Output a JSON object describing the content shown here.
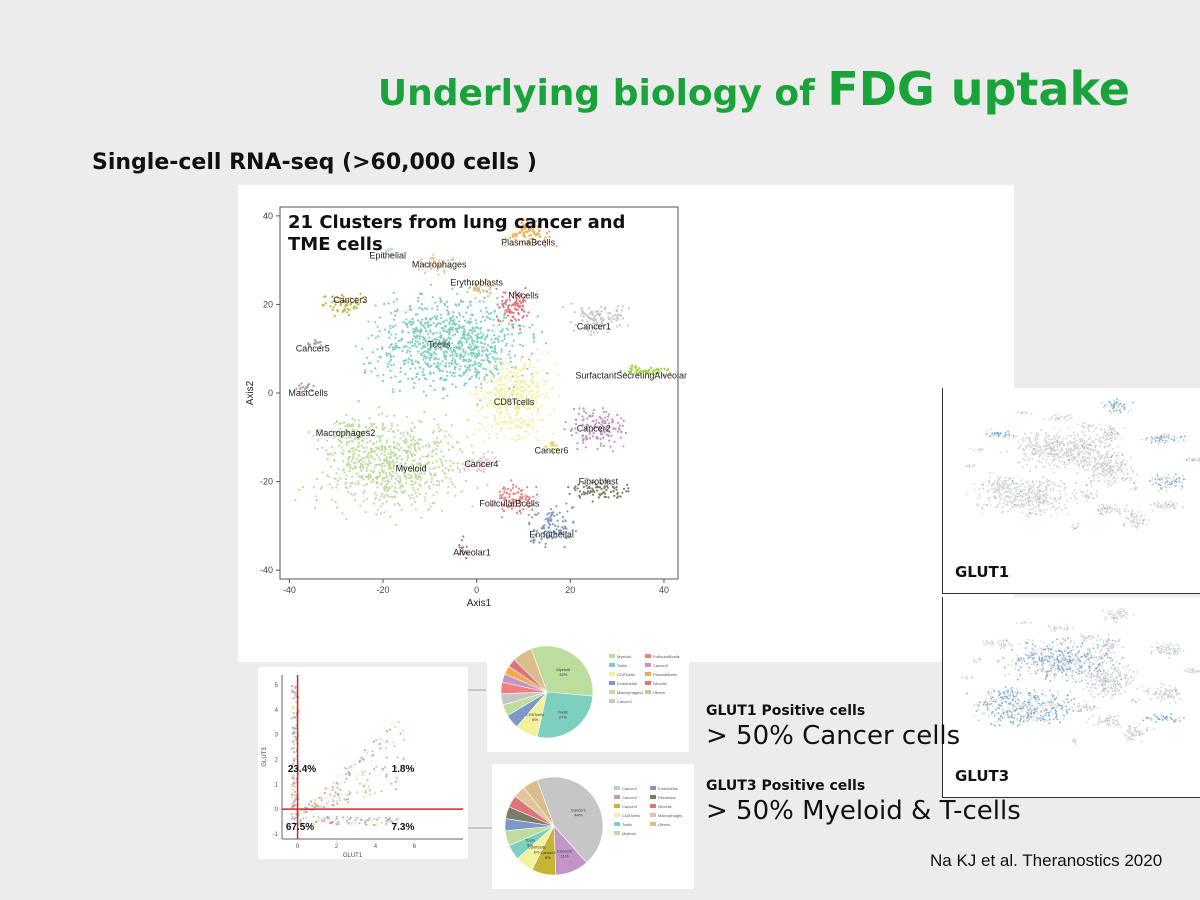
{
  "slide": {
    "title_part1": "Underlying biology of ",
    "title_part2": "FDG uptake",
    "subtitle": "Single-cell RNA-seq (>60,000 cells )",
    "citation": "Na KJ et al. Theranostics 2020",
    "title_color": "#1aa33a"
  },
  "glut_panels": {
    "glut1_label": "GLUT1",
    "glut3_label": "GLUT3",
    "expression_color": "#7fb0d8",
    "background_color": "#d4d4d4"
  },
  "stats": {
    "glut1_heading": "GLUT1 Positive cells",
    "glut1_value": "> 50% Cancer cells",
    "glut3_heading": "GLUT3 Positive cells",
    "glut3_value": "> 50% Myeloid & T-cells"
  },
  "chart_data": [
    {
      "type": "scatter",
      "title": "21 Clusters from lung cancer and TME cells",
      "xlabel": "Axis1",
      "ylabel": "Axis2",
      "xlim": [
        -42,
        43
      ],
      "ylim": [
        -42,
        42
      ],
      "xticks": [
        "-40",
        "-20",
        "0",
        "20",
        "40"
      ],
      "yticks": [
        "40",
        "20",
        "0",
        "-20",
        "-40"
      ],
      "grid": false,
      "clusters": [
        {
          "name": "Tcells",
          "label_at": [
            -8,
            11
          ],
          "center": [
            -6,
            11
          ],
          "spread": [
            14,
            9
          ],
          "color": "#7dcfc0",
          "density": 900
        },
        {
          "name": "Myeloid",
          "label_at": [
            -14,
            -17
          ],
          "center": [
            -18,
            -16
          ],
          "spread": [
            14,
            9
          ],
          "color": "#bcdd9e",
          "density": 700
        },
        {
          "name": "CD8Tcells",
          "label_at": [
            8,
            -2
          ],
          "center": [
            8,
            -1
          ],
          "spread": [
            7,
            8
          ],
          "color": "#f3f09e",
          "density": 380
        },
        {
          "name": "Macrophages2",
          "label_at": [
            -28,
            -9
          ],
          "center": [
            -26,
            -9
          ],
          "spread": [
            4,
            3
          ],
          "color": "#bcdd9e",
          "density": 70
        },
        {
          "name": "Cancer1",
          "label_at": [
            25,
            15
          ],
          "center": [
            26,
            17
          ],
          "spread": [
            5,
            3
          ],
          "color": "#c6c6c6",
          "density": 110
        },
        {
          "name": "SurfactantSecretingAlveolar",
          "label_at": [
            33,
            4
          ],
          "center": [
            36,
            5
          ],
          "spread": [
            4,
            1
          ],
          "color": "#9bd033",
          "density": 50
        },
        {
          "name": "Cancer2",
          "label_at": [
            25,
            -8
          ],
          "center": [
            26,
            -8
          ],
          "spread": [
            5,
            4
          ],
          "color": "#c394c6",
          "density": 140
        },
        {
          "name": "Fibroblast",
          "label_at": [
            26,
            -20
          ],
          "center": [
            26,
            -22
          ],
          "spread": [
            5,
            2
          ],
          "color": "#7c7c66",
          "density": 80
        },
        {
          "name": "Endothelial",
          "label_at": [
            16,
            -32
          ],
          "center": [
            16,
            -30
          ],
          "spread": [
            4,
            4
          ],
          "color": "#7d98c4",
          "density": 100
        },
        {
          "name": "FollicularBcells",
          "label_at": [
            7,
            -25
          ],
          "center": [
            8,
            -24
          ],
          "spread": [
            4,
            3
          ],
          "color": "#ee7f7c",
          "density": 90
        },
        {
          "name": "Cancer4",
          "label_at": [
            1,
            -16
          ],
          "center": [
            1,
            -16
          ],
          "spread": [
            3,
            2
          ],
          "color": "#f4bfd4",
          "density": 50
        },
        {
          "name": "Cancer6",
          "label_at": [
            16,
            -13
          ],
          "center": [
            16,
            -12
          ],
          "spread": [
            1,
            1
          ],
          "color": "#e8d048",
          "density": 15
        },
        {
          "name": "Alveolar1",
          "label_at": [
            -1,
            -36
          ],
          "center": [
            -3,
            -35
          ],
          "spread": [
            1,
            2
          ],
          "color": "#a574a8",
          "density": 15
        },
        {
          "name": "NKcells",
          "label_at": [
            10,
            22
          ],
          "center": [
            8,
            20
          ],
          "spread": [
            3,
            4
          ],
          "color": "#e0727a",
          "density": 90
        },
        {
          "name": "PlasmaBcells",
          "label_at": [
            11,
            34
          ],
          "center": [
            11,
            36
          ],
          "spread": [
            4,
            3
          ],
          "color": "#f2a950",
          "density": 90
        },
        {
          "name": "Erythroblasts",
          "label_at": [
            0,
            25
          ],
          "center": [
            1,
            24
          ],
          "spread": [
            3,
            2
          ],
          "color": "#dbbd8b",
          "density": 40
        },
        {
          "name": "Macrophages",
          "label_at": [
            -8,
            29
          ],
          "center": [
            -8,
            29
          ],
          "spread": [
            4,
            2
          ],
          "color": "#e0c69a",
          "density": 40
        },
        {
          "name": "Epithelial",
          "label_at": [
            -19,
            31
          ],
          "center": [
            -19,
            32
          ],
          "spread": [
            2,
            1
          ],
          "color": "#b6dccf",
          "density": 12
        },
        {
          "name": "Cancer3",
          "label_at": [
            -27,
            21
          ],
          "center": [
            -28,
            20
          ],
          "spread": [
            4,
            2
          ],
          "color": "#c8b334",
          "density": 60
        },
        {
          "name": "Cancer5",
          "label_at": [
            -35,
            10
          ],
          "center": [
            -34,
            11
          ],
          "spread": [
            2,
            1
          ],
          "color": "#9da2b8",
          "density": 15
        },
        {
          "name": "MastCells",
          "label_at": [
            -36,
            0
          ],
          "center": [
            -37,
            1
          ],
          "spread": [
            2,
            1
          ],
          "color": "#b28fb4",
          "density": 15
        }
      ]
    },
    {
      "type": "scatter",
      "title": "",
      "xlabel": "GLUT1",
      "ylabel": "GLUT3",
      "xlim": [
        -0.8,
        8.5
      ],
      "ylim": [
        -1.2,
        5.4
      ],
      "xticks": [
        "0",
        "2",
        "4",
        "6"
      ],
      "yticks": [
        "5",
        "4",
        "3",
        "2",
        "1",
        "0",
        "-1"
      ],
      "thresholds": {
        "x": 0,
        "y": 0
      },
      "quadrants": [
        {
          "position": "top-left",
          "label": "23.4%"
        },
        {
          "position": "top-right",
          "label": "1.8%"
        },
        {
          "position": "bottom-left",
          "label": "67.5%"
        },
        {
          "position": "bottom-right",
          "label": "7.3%"
        }
      ]
    },
    {
      "type": "pie",
      "title": "",
      "slices": [
        {
          "name": "Myeloid",
          "value": 32,
          "color": "#bcdd9e",
          "pct_label": "32%"
        },
        {
          "name": "Tcells",
          "value": 27,
          "color": "#7dcfc0",
          "pct_label": "27%"
        },
        {
          "name": "CD8Tcells",
          "value": 8,
          "color": "#f3f09e",
          "pct_label": "8%"
        },
        {
          "name": "Endothelial",
          "value": 5,
          "color": "#7d98c4",
          "pct_label": ""
        },
        {
          "name": "Macrophages2",
          "value": 4,
          "color": "#bcdd9e",
          "pct_label": ""
        },
        {
          "name": "Cancer1",
          "value": 4,
          "color": "#c6c6c6",
          "pct_label": ""
        },
        {
          "name": "FollicularBcells",
          "value": 4,
          "color": "#ee7f7c",
          "pct_label": ""
        },
        {
          "name": "Cancer2",
          "value": 3,
          "color": "#c394c6",
          "pct_label": ""
        },
        {
          "name": "PlasmaBcells",
          "value": 3,
          "color": "#f2a950",
          "pct_label": ""
        },
        {
          "name": "NKcells",
          "value": 3,
          "color": "#e0727a",
          "pct_label": ""
        },
        {
          "name": "Others",
          "value": 7,
          "color": "#dbbd8b",
          "pct_label": ""
        }
      ],
      "legend": "right"
    },
    {
      "type": "pie",
      "title": "",
      "slices": [
        {
          "name": "Cancer1",
          "value": 44,
          "color": "#c6c6c6",
          "pct_label": "44%"
        },
        {
          "name": "Cancer2",
          "value": 11,
          "color": "#c394c6",
          "pct_label": "11%"
        },
        {
          "name": "Cancer3",
          "value": 8,
          "color": "#c8b334",
          "pct_label": "8%"
        },
        {
          "name": "CD8Tcells",
          "value": 6,
          "color": "#f3f09e",
          "pct_label": "6%"
        },
        {
          "name": "Tcells",
          "value": 5,
          "color": "#7dcfc0",
          "pct_label": "5%"
        },
        {
          "name": "Myeloid",
          "value": 5,
          "color": "#bcdd9e",
          "pct_label": ""
        },
        {
          "name": "Endothelial",
          "value": 4,
          "color": "#7d98c4",
          "pct_label": ""
        },
        {
          "name": "Fibroblast",
          "value": 4,
          "color": "#7c7c66",
          "pct_label": ""
        },
        {
          "name": "NKcells",
          "value": 4,
          "color": "#e0727a",
          "pct_label": ""
        },
        {
          "name": "Macrophages",
          "value": 4,
          "color": "#e0c69a",
          "pct_label": ""
        },
        {
          "name": "Others",
          "value": 5,
          "color": "#dbbd8b",
          "pct_label": ""
        }
      ],
      "legend": "right"
    }
  ]
}
